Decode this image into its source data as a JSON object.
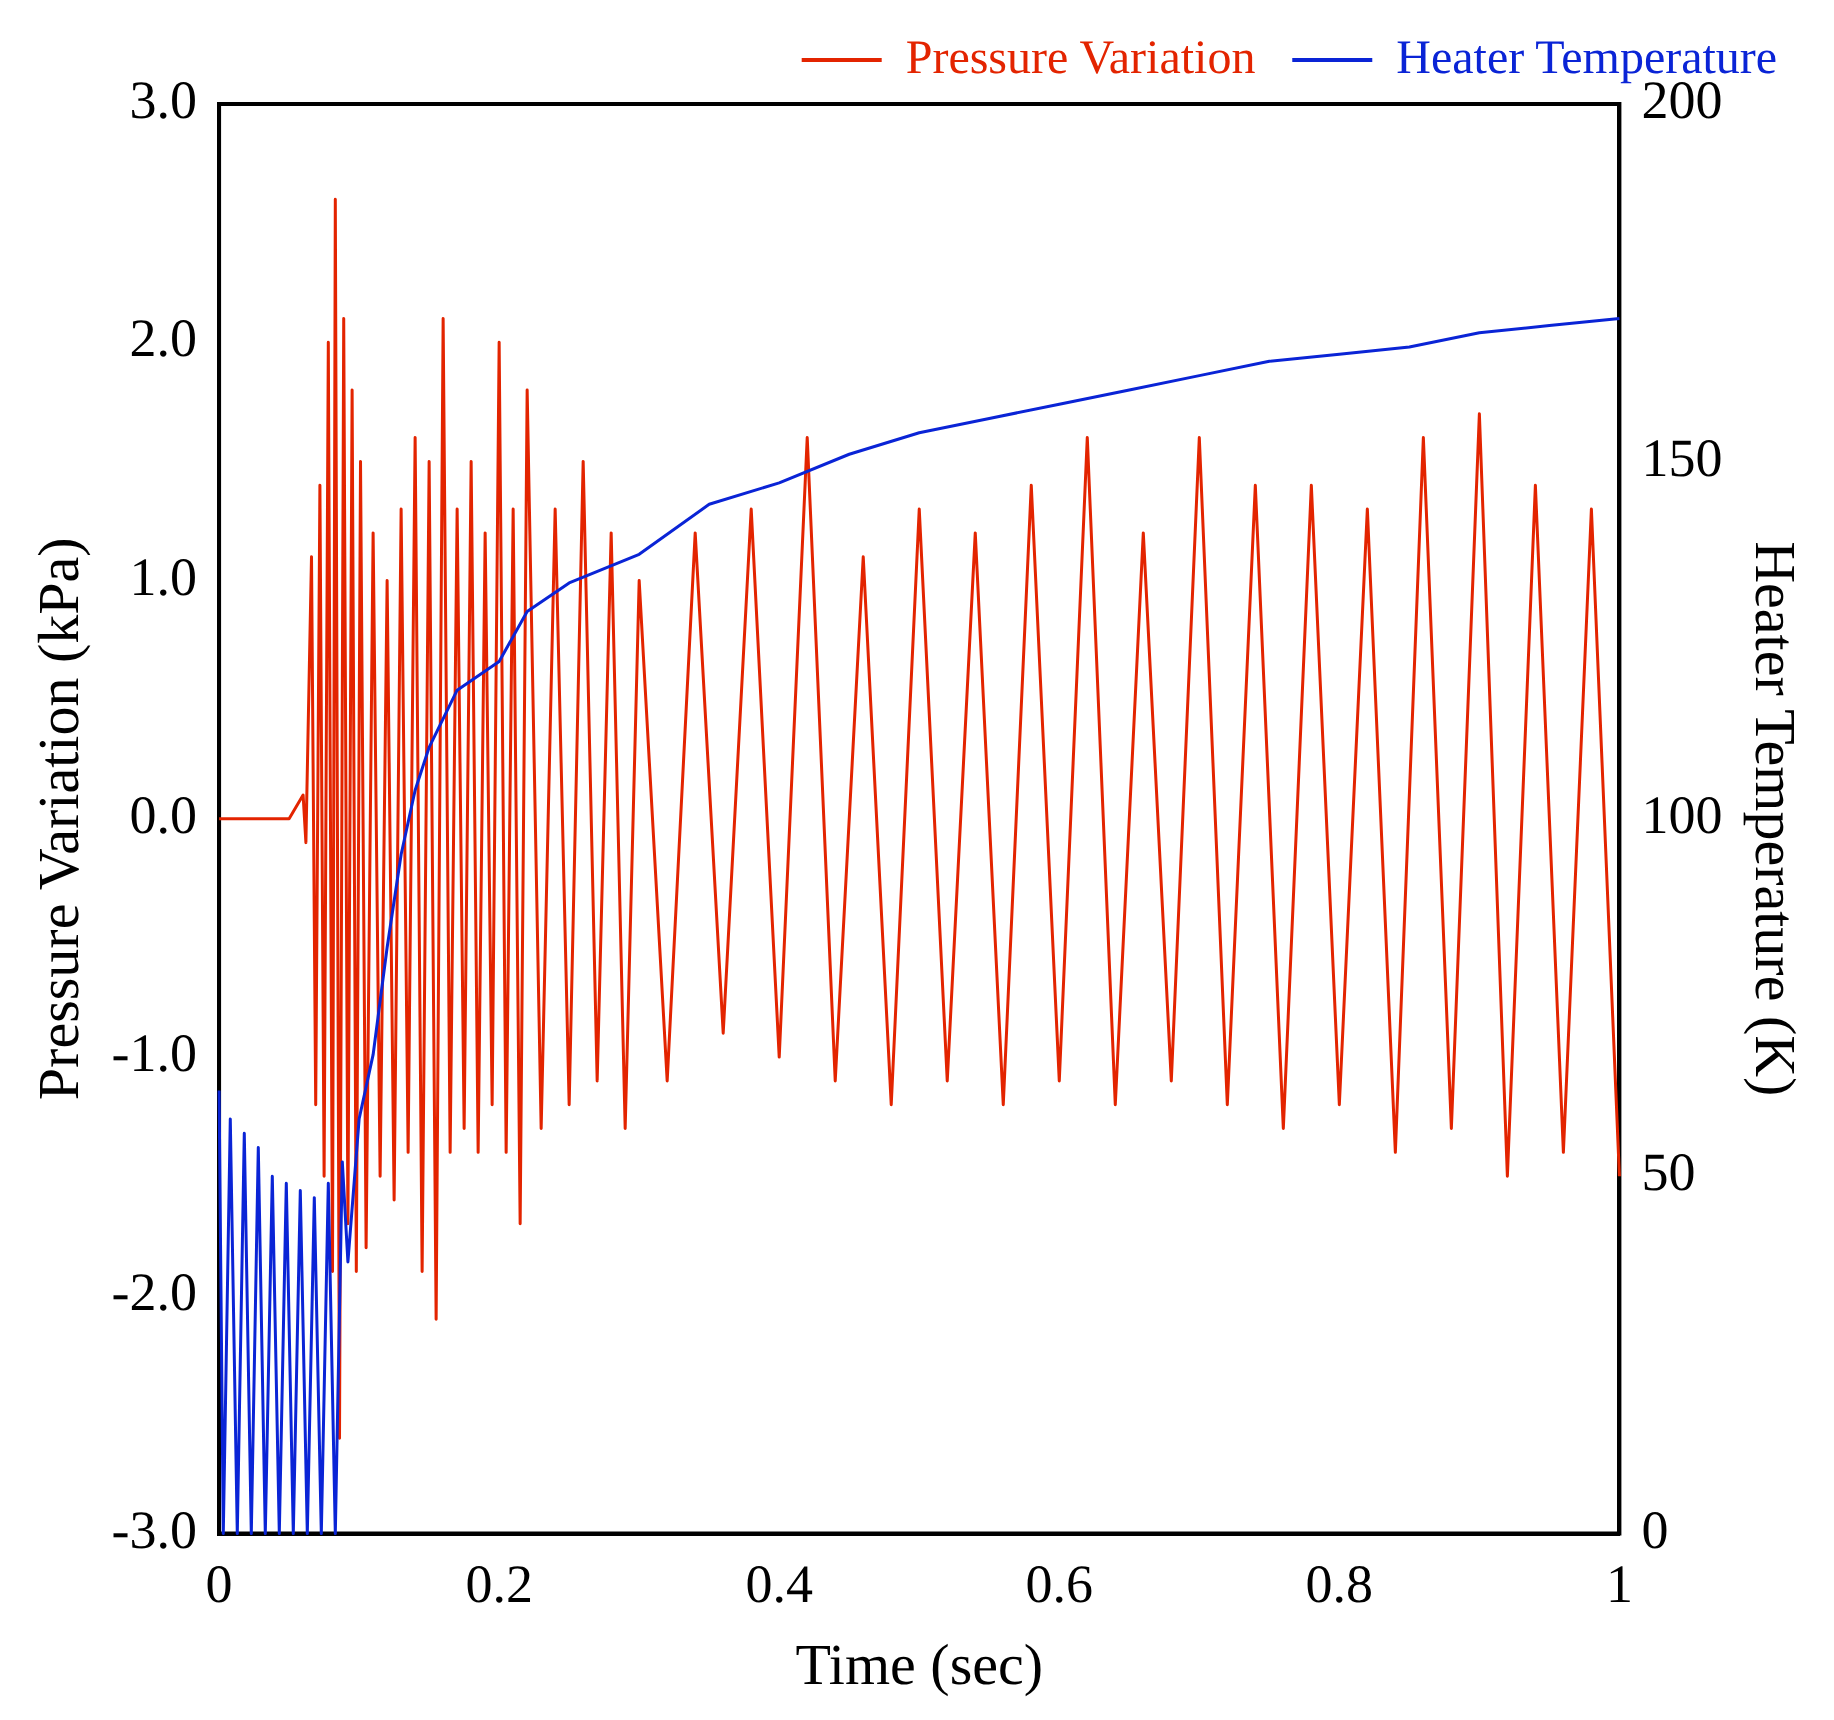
{
  "chart_data": {
    "type": "line",
    "xlabel": "Time (sec)",
    "ylabel": "Pressure Variation (kPa)",
    "y2label": "Heater Temperature (K)",
    "xlim": [
      0,
      1
    ],
    "xticks": [
      0,
      {
        "value": 0.2,
        "label": "0.2"
      },
      {
        "value": 0.4,
        "label": "0.4"
      },
      {
        "value": 0.6,
        "label": "0.6"
      },
      {
        "value": 0.8,
        "label": "0.8"
      },
      1
    ],
    "ylim": [
      -3,
      3
    ],
    "yticks": [
      {
        "value": -3,
        "label": "-3.0"
      },
      {
        "value": -2,
        "label": "-2.0"
      },
      {
        "value": -1,
        "label": "-1.0"
      },
      {
        "value": 0,
        "label": "0.0"
      },
      {
        "value": 1,
        "label": "1.0"
      },
      {
        "value": 2,
        "label": "2.0"
      },
      {
        "value": 3,
        "label": "3.0"
      }
    ],
    "y2lim": [
      0,
      200
    ],
    "y2ticks": [
      0,
      50,
      100,
      150,
      200
    ],
    "legend": "top right",
    "grid": false,
    "series": [
      {
        "name": "Pressure Variation",
        "color": "#e32400",
        "x": [
          0,
          0.05,
          0.06,
          0.062,
          0.066,
          0.069,
          0.072,
          0.075,
          0.078,
          0.081,
          0.083,
          0.086,
          0.089,
          0.092,
          0.095,
          0.098,
          0.101,
          0.105,
          0.11,
          0.115,
          0.12,
          0.125,
          0.13,
          0.135,
          0.14,
          0.145,
          0.15,
          0.155,
          0.16,
          0.165,
          0.17,
          0.175,
          0.18,
          0.185,
          0.19,
          0.195,
          0.2,
          0.205,
          0.21,
          0.215,
          0.22,
          0.23,
          0.24,
          0.25,
          0.26,
          0.27,
          0.28,
          0.29,
          0.3,
          0.32,
          0.34,
          0.36,
          0.38,
          0.4,
          0.42,
          0.44,
          0.46,
          0.48,
          0.5,
          0.52,
          0.54,
          0.56,
          0.58,
          0.6,
          0.62,
          0.64,
          0.66,
          0.68,
          0.7,
          0.72,
          0.74,
          0.76,
          0.78,
          0.8,
          0.82,
          0.84,
          0.86,
          0.88,
          0.9,
          0.92,
          0.94,
          0.96,
          0.98,
          1.0
        ],
        "values": [
          0,
          0,
          0.1,
          -0.1,
          1.1,
          -1.2,
          1.4,
          -1.5,
          2.0,
          -1.9,
          2.6,
          -2.6,
          2.1,
          -1.7,
          1.8,
          -1.9,
          1.5,
          -1.8,
          1.2,
          -1.5,
          1.0,
          -1.6,
          1.3,
          -1.4,
          1.6,
          -1.9,
          1.5,
          -2.1,
          2.1,
          -1.4,
          1.3,
          -1.3,
          1.5,
          -1.4,
          1.2,
          -1.2,
          2.0,
          -1.4,
          1.3,
          -1.7,
          1.8,
          -1.3,
          1.3,
          -1.2,
          1.5,
          -1.1,
          1.2,
          -1.3,
          1.0,
          -1.1,
          1.2,
          -0.9,
          1.3,
          -1.0,
          1.6,
          -1.1,
          1.1,
          -1.2,
          1.3,
          -1.1,
          1.2,
          -1.2,
          1.4,
          -1.1,
          1.6,
          -1.2,
          1.2,
          -1.1,
          1.6,
          -1.2,
          1.4,
          -1.3,
          1.4,
          -1.2,
          1.3,
          -1.4,
          1.6,
          -1.3,
          1.7,
          -1.5,
          1.4,
          -1.4,
          1.3,
          -1.5
        ]
      },
      {
        "name": "Heater Temperature",
        "color": "#0a24d6",
        "axis": "y2",
        "x": [
          0,
          0.003,
          0.008,
          0.013,
          0.018,
          0.023,
          0.028,
          0.033,
          0.038,
          0.043,
          0.048,
          0.053,
          0.058,
          0.063,
          0.068,
          0.073,
          0.078,
          0.083,
          0.088,
          0.092,
          0.1,
          0.11,
          0.12,
          0.13,
          0.14,
          0.15,
          0.17,
          0.2,
          0.22,
          0.25,
          0.3,
          0.35,
          0.4,
          0.45,
          0.5,
          0.55,
          0.6,
          0.65,
          0.7,
          0.75,
          0.8,
          0.85,
          0.9,
          0.95,
          1.0
        ],
        "values": [
          62,
          0,
          58,
          0,
          56,
          0,
          54,
          0,
          50,
          0,
          49,
          0,
          48,
          0,
          47,
          0,
          49,
          0,
          52,
          38,
          58,
          67,
          82,
          95,
          104,
          110,
          118,
          122,
          129,
          133,
          137,
          144,
          147,
          151,
          154,
          156,
          158,
          160,
          162,
          164,
          165,
          166,
          168,
          169,
          170
        ]
      }
    ]
  }
}
